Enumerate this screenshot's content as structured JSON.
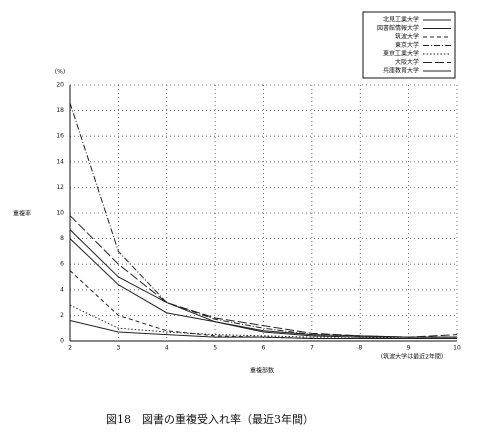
{
  "chart_data": {
    "type": "line",
    "caption": "図18　図書の重複受入れ率（最近3年間）",
    "y_label": "重複率",
    "y_unit": "(%)",
    "x_label": "重複部数",
    "note": "(筑波大学は最近2年間)",
    "x": [
      2,
      3,
      4,
      5,
      6,
      7,
      8,
      9,
      10
    ],
    "xlim": [
      2,
      10
    ],
    "xticks": [
      2,
      3,
      4,
      5,
      6,
      7,
      8,
      9,
      10
    ],
    "ylim": [
      0,
      20
    ],
    "yticks": [
      0,
      2,
      4,
      6,
      8,
      10,
      12,
      14,
      16,
      18,
      20
    ],
    "grid": true,
    "series": [
      {
        "name": "北見工業大学",
        "color": "#222222",
        "style": "solid",
        "values": [
          1.6,
          0.7,
          0.5,
          0.3,
          0.3,
          0.2,
          0.2,
          0.2,
          0.2
        ]
      },
      {
        "name": "図書館情報大学",
        "color": "#222222",
        "style": "solid",
        "values": [
          8.0,
          4.4,
          2.2,
          1.5,
          0.7,
          0.4,
          0.3,
          0.3,
          0.3
        ]
      },
      {
        "name": "筑波大学",
        "color": "#222222",
        "style": "dashed",
        "values": [
          5.5,
          2.0,
          0.8,
          0.4,
          0.3,
          0.2,
          0.2,
          0.2,
          0.2
        ]
      },
      {
        "name": "東京大学",
        "color": "#222222",
        "style": "dashdot",
        "values": [
          18.6,
          7.0,
          3.0,
          1.7,
          1.0,
          0.5,
          0.4,
          0.3,
          0.3
        ]
      },
      {
        "name": "東京工業大学",
        "color": "#222222",
        "style": "dotted",
        "values": [
          2.8,
          1.0,
          0.7,
          0.5,
          0.4,
          0.3,
          0.3,
          0.2,
          0.2
        ]
      },
      {
        "name": "大阪大学",
        "color": "#222222",
        "style": "longdash",
        "values": [
          9.8,
          6.0,
          3.0,
          1.8,
          1.2,
          0.6,
          0.4,
          0.3,
          0.5
        ]
      },
      {
        "name": "兵庫教育大学",
        "color": "#222222",
        "style": "solid",
        "values": [
          8.7,
          5.0,
          3.0,
          1.5,
          0.8,
          0.5,
          0.4,
          0.3,
          0.3
        ]
      }
    ]
  }
}
